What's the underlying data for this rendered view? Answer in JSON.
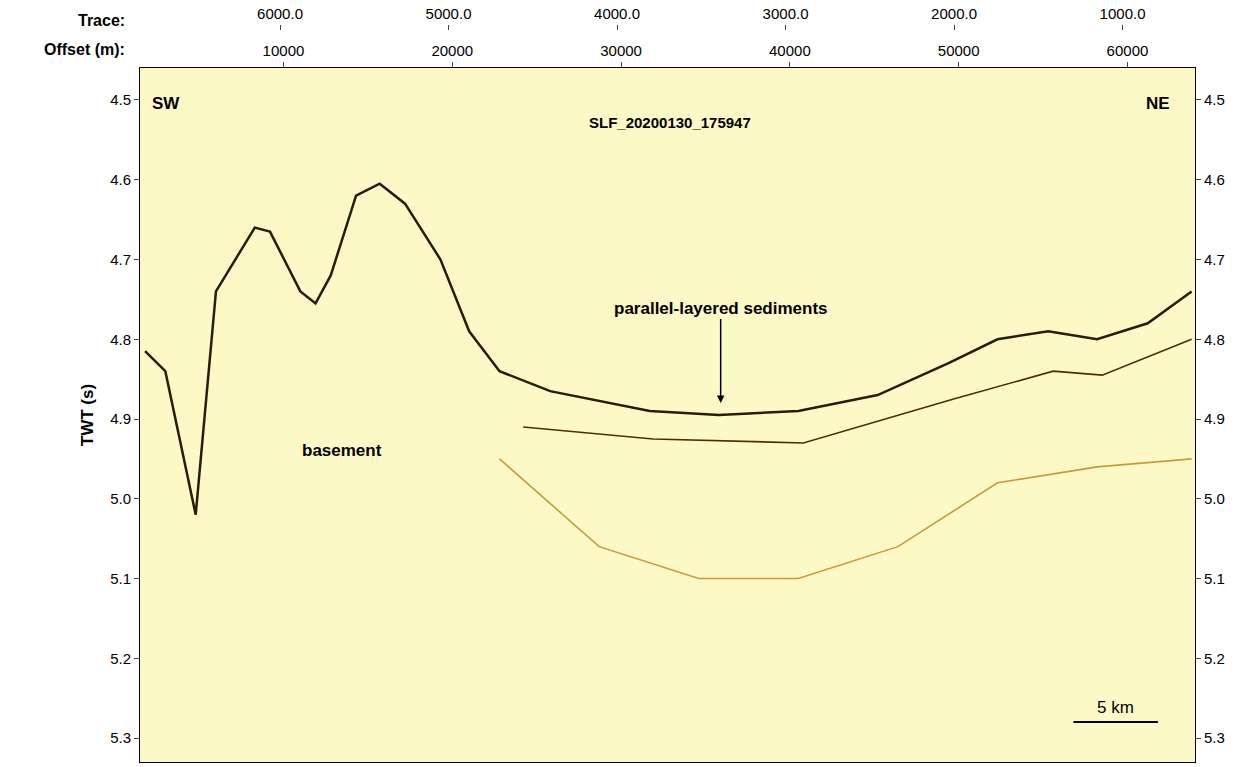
{
  "chart_data": {
    "type": "line",
    "title": "SLF_20200130_175947",
    "x_label": "Offset (m):",
    "x2_label": "Trace:",
    "y_label": "TWT (s)",
    "xlim": [
      1500,
      64000
    ],
    "xticks": [
      10000,
      20000,
      30000,
      40000,
      50000,
      60000
    ],
    "x2lim": [
      6831,
      570
    ],
    "x2ticks": [
      {
        "value": 6000,
        "label": "6000.0"
      },
      {
        "value": 5000,
        "label": "5000.0"
      },
      {
        "value": 4000,
        "label": "4000.0"
      },
      {
        "value": 3000,
        "label": "3000.0"
      },
      {
        "value": 2000,
        "label": "2000.0"
      },
      {
        "value": 1000,
        "label": "1000.0"
      }
    ],
    "ylim": [
      5.33,
      4.46
    ],
    "yticks": [
      4.5,
      4.6,
      4.7,
      4.8,
      4.9,
      {
        "value": 5,
        "label": "5.0"
      },
      5.1,
      5.2,
      5.3
    ],
    "grid": false,
    "series": [
      {
        "color": "#2b1a08",
        "x": [
          1800,
          3000,
          4800,
          6000,
          8300,
          9200,
          11000,
          11900,
          12800,
          14300,
          15700,
          17200,
          19300,
          21000,
          22800,
          25800,
          31700,
          35800,
          40500,
          45200,
          49400,
          52300,
          55300,
          58200,
          61200,
          63800
        ],
        "values": [
          4.815,
          4.84,
          5.02,
          4.74,
          4.66,
          4.665,
          4.74,
          4.755,
          4.72,
          4.62,
          4.605,
          4.63,
          4.7,
          4.79,
          4.84,
          4.865,
          4.89,
          4.895,
          4.89,
          4.87,
          4.83,
          4.8,
          4.79,
          4.8,
          4.78,
          4.74
        ]
      },
      {
        "color": "#4a2e0c",
        "x": [
          24200,
          31900,
          40800,
          49700,
          55600,
          58500,
          63800
        ],
        "values": [
          4.91,
          4.925,
          4.93,
          4.875,
          4.84,
          4.845,
          4.8
        ]
      },
      {
        "color": "#c89a3a",
        "x": [
          22800,
          28700,
          34600,
          40500,
          46400,
          52300,
          58200,
          63800
        ],
        "values": [
          4.95,
          5.06,
          5.1,
          5.1,
          5.06,
          4.98,
          4.96,
          4.95
        ]
      }
    ],
    "annotations": [
      {
        "text": "SW",
        "x": 3040,
        "y": 4.504
      },
      {
        "text": "NE",
        "x": 61780,
        "y": 4.504
      },
      {
        "text": "basement",
        "x": 13480,
        "y": 4.94
      },
      {
        "text": "parallel-layered sediments",
        "x": 35900,
        "y": 4.88,
        "arrow": true
      }
    ],
    "scale_bar": {
      "label": "5 km",
      "length": 5000,
      "x": 56800,
      "y": 5.28
    }
  }
}
